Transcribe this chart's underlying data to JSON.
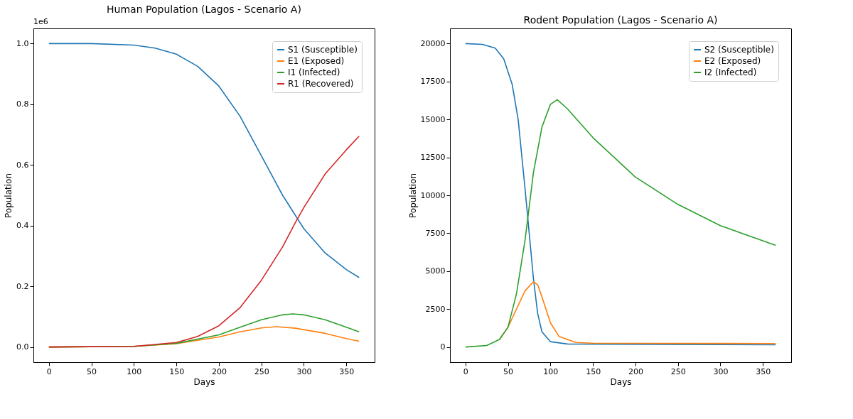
{
  "chart_data": [
    {
      "type": "line",
      "title": "Human Population (Lagos - Scenario A)",
      "xlabel": "Days",
      "ylabel": "Population",
      "annotations": [
        "1e6"
      ],
      "legend": "top right",
      "xlim": [
        -18.25,
        383.25
      ],
      "ylim": [
        -0.05,
        1.05
      ],
      "xticks": [
        0,
        50,
        100,
        150,
        200,
        250,
        300,
        350
      ],
      "yticks": [
        {
          "value": 0,
          "label": "0.0"
        },
        {
          "value": 0.2,
          "label": "0.2"
        },
        {
          "value": 0.4,
          "label": "0.4"
        },
        {
          "value": 0.6,
          "label": "0.6"
        },
        {
          "value": 0.8,
          "label": "0.8"
        },
        {
          "value": 1,
          "label": "1.0"
        }
      ],
      "series": [
        {
          "name": "S1 (Susceptible)",
          "color": "#1f77b4",
          "x": [
            0,
            50,
            100,
            125,
            150,
            175,
            200,
            225,
            250,
            275,
            300,
            325,
            350,
            365
          ],
          "values": [
            1.0,
            1.0,
            0.995,
            0.985,
            0.965,
            0.925,
            0.86,
            0.76,
            0.63,
            0.5,
            0.39,
            0.31,
            0.255,
            0.229
          ]
        },
        {
          "name": "E1 (Exposed)",
          "color": "#ff7f0e",
          "x": [
            0,
            100,
            150,
            200,
            225,
            250,
            268,
            290,
            325,
            350,
            365
          ],
          "values": [
            0,
            0.002,
            0.011,
            0.033,
            0.05,
            0.063,
            0.067,
            0.062,
            0.045,
            0.028,
            0.019
          ]
        },
        {
          "name": "I1 (Infected)",
          "color": "#2ca02c",
          "x": [
            0,
            100,
            150,
            200,
            225,
            250,
            275,
            287,
            300,
            325,
            350,
            365
          ],
          "values": [
            0,
            0.002,
            0.012,
            0.04,
            0.065,
            0.09,
            0.106,
            0.109,
            0.106,
            0.09,
            0.065,
            0.05
          ]
        },
        {
          "name": "R1 (Recovered)",
          "color": "#d62728",
          "x": [
            0,
            100,
            150,
            175,
            200,
            225,
            250,
            275,
            290,
            300,
            325,
            350,
            365
          ],
          "values": [
            0,
            0.002,
            0.015,
            0.035,
            0.07,
            0.13,
            0.22,
            0.33,
            0.41,
            0.46,
            0.57,
            0.65,
            0.695
          ]
        }
      ]
    },
    {
      "type": "line",
      "title": "Rodent Population (Lagos - Scenario A)",
      "xlabel": "Days",
      "ylabel": "Population",
      "legend": "top right",
      "xlim": [
        -18.25,
        383.25
      ],
      "ylim": [
        -1000,
        21000
      ],
      "xticks": [
        0,
        50,
        100,
        150,
        200,
        250,
        300,
        350
      ],
      "yticks": [
        {
          "value": 0,
          "label": "0"
        },
        {
          "value": 2500,
          "label": "2500"
        },
        {
          "value": 5000,
          "label": "5000"
        },
        {
          "value": 7500,
          "label": "7500"
        },
        {
          "value": 10000,
          "label": "10000"
        },
        {
          "value": 12500,
          "label": "12500"
        },
        {
          "value": 15000,
          "label": "15000"
        },
        {
          "value": 17500,
          "label": "17500"
        },
        {
          "value": 20000,
          "label": "20000"
        }
      ],
      "series": [
        {
          "name": "S2 (Susceptible)",
          "color": "#1f77b4",
          "x": [
            0,
            20,
            35,
            45,
            55,
            62,
            70,
            75,
            80,
            85,
            90,
            100,
            120,
            365
          ],
          "values": [
            20000,
            19950,
            19700,
            19000,
            17300,
            15000,
            10500,
            7500,
            4500,
            2200,
            1000,
            350,
            200,
            150
          ]
        },
        {
          "name": "E2 (Exposed)",
          "color": "#ff7f0e",
          "x": [
            40,
            50,
            60,
            70,
            80,
            85,
            90,
            100,
            110,
            130,
            150,
            365
          ],
          "values": [
            500,
            1300,
            2500,
            3700,
            4300,
            4100,
            3300,
            1600,
            700,
            300,
            250,
            230
          ]
        },
        {
          "name": "I2 (Infected)",
          "color": "#2ca02c",
          "x": [
            0,
            25,
            40,
            50,
            60,
            70,
            80,
            90,
            100,
            108,
            120,
            150,
            200,
            250,
            300,
            365
          ],
          "values": [
            0,
            100,
            500,
            1300,
            3500,
            7000,
            11500,
            14500,
            16000,
            16300,
            15700,
            13800,
            11200,
            9400,
            8000,
            6700
          ]
        }
      ]
    }
  ]
}
